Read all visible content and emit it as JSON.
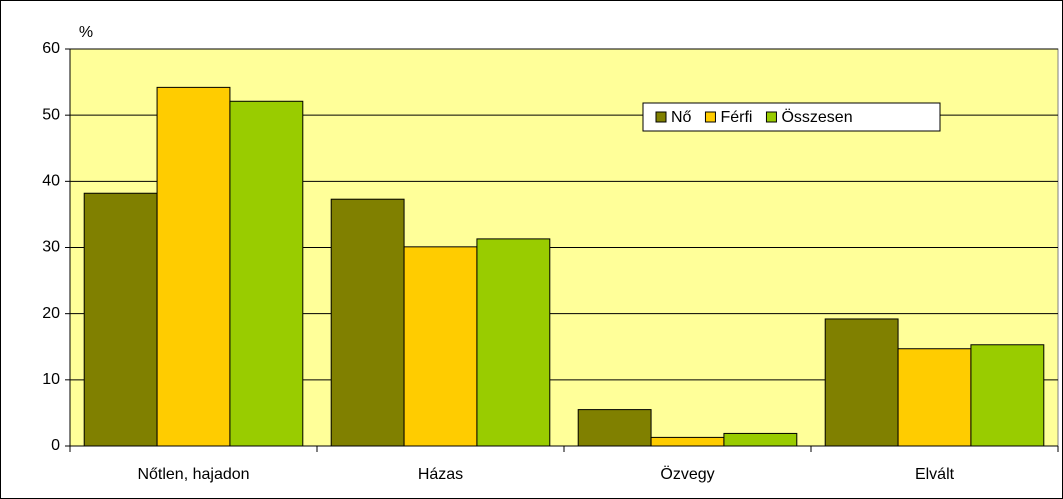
{
  "chart_data": {
    "type": "bar",
    "y_label": "%",
    "categories": [
      "Nőtlen, hajadon",
      "Házas",
      "Özvegy",
      "Elvált"
    ],
    "series": [
      {
        "name": "Nő",
        "color": "#808000",
        "values": [
          38.2,
          37.3,
          5.5,
          19.2
        ]
      },
      {
        "name": "Férfi",
        "color": "#ffcc00",
        "values": [
          54.2,
          30.1,
          1.3,
          14.7
        ]
      },
      {
        "name": "Összesen",
        "color": "#99cc00",
        "values": [
          52.1,
          31.3,
          1.9,
          15.3
        ]
      }
    ],
    "ylim": [
      0,
      60
    ],
    "yticks": [
      0,
      10,
      20,
      30,
      40,
      50,
      60
    ],
    "grid": true,
    "legend": "top-right",
    "plot_background": "#ffff99"
  }
}
